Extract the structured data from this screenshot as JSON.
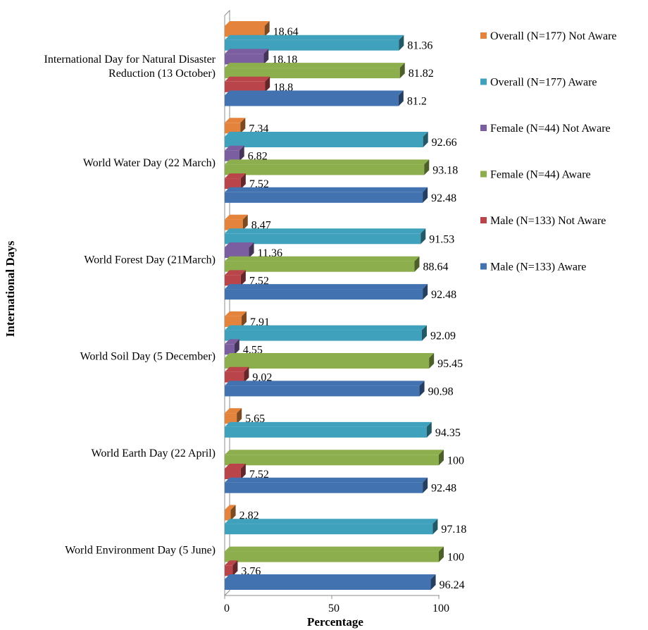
{
  "chart_data": {
    "type": "bar",
    "orientation": "horizontal",
    "style": "3d",
    "title": "",
    "xlabel": "Percentage",
    "ylabel": "International Days",
    "xlim": [
      0,
      100
    ],
    "xticks": [
      0,
      50,
      100
    ],
    "grid": false,
    "legend_position": "right",
    "categories": [
      [
        "International Day for Natural Disaster",
        "Reduction (13 October)"
      ],
      [
        "World Water Day (22 March)"
      ],
      [
        "World Forest Day (21March)"
      ],
      [
        "World Soil Day (5 December)"
      ],
      [
        "World Earth Day (22 April)"
      ],
      [
        "World Environment Day  (5 June)"
      ]
    ],
    "series": [
      {
        "name": "Overall (N=177) Not Aware",
        "color": "#E4843C",
        "values": [
          18.64,
          7.34,
          8.47,
          7.91,
          5.65,
          2.82
        ]
      },
      {
        "name": "Overall (N=177) Aware",
        "color": "#3FA1BB",
        "values": [
          81.36,
          92.66,
          91.53,
          92.09,
          94.35,
          97.18
        ]
      },
      {
        "name": "Female  (N=44) Not Aware",
        "color": "#7B5EA0",
        "values": [
          18.18,
          6.82,
          11.36,
          4.55,
          null,
          null
        ]
      },
      {
        "name": "Female  (N=44) Aware",
        "color": "#8DAE4D",
        "values": [
          81.82,
          93.18,
          88.64,
          95.45,
          100,
          100
        ]
      },
      {
        "name": "Male (N=133) Not Aware",
        "color": "#B9454A",
        "values": [
          18.8,
          7.52,
          7.52,
          9.02,
          7.52,
          3.76
        ]
      },
      {
        "name": "Male (N=133) Aware",
        "color": "#4272B0",
        "values": [
          81.2,
          92.48,
          92.48,
          90.98,
          92.48,
          96.24
        ]
      }
    ]
  }
}
